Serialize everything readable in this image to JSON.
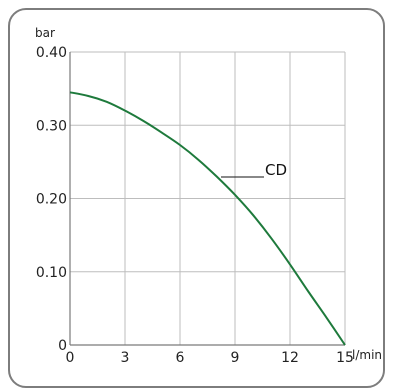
{
  "chart_data": {
    "type": "line",
    "y_unit": "bar",
    "x_unit": "l/min",
    "xlim": [
      0,
      15
    ],
    "ylim": [
      0,
      0.4
    ],
    "x_ticks": [
      0,
      3,
      6,
      9,
      12,
      15
    ],
    "x_tick_labels": [
      "0",
      "3",
      "6",
      "9",
      "12",
      "15"
    ],
    "y_ticks": [
      0,
      0.1,
      0.2,
      0.3,
      0.4
    ],
    "y_tick_labels": [
      "0",
      "0.10",
      "0.20",
      "0.30",
      "0.40"
    ],
    "grid": true,
    "series": [
      {
        "name": "CD",
        "color": "#1e7a3c",
        "x": [
          0,
          1,
          2,
          3,
          4,
          5,
          6,
          7,
          8,
          9,
          10,
          11,
          12,
          13,
          14,
          15
        ],
        "y": [
          0.345,
          0.34,
          0.332,
          0.32,
          0.306,
          0.29,
          0.273,
          0.253,
          0.23,
          0.205,
          0.177,
          0.145,
          0.11,
          0.073,
          0.037,
          0.0
        ]
      }
    ]
  }
}
